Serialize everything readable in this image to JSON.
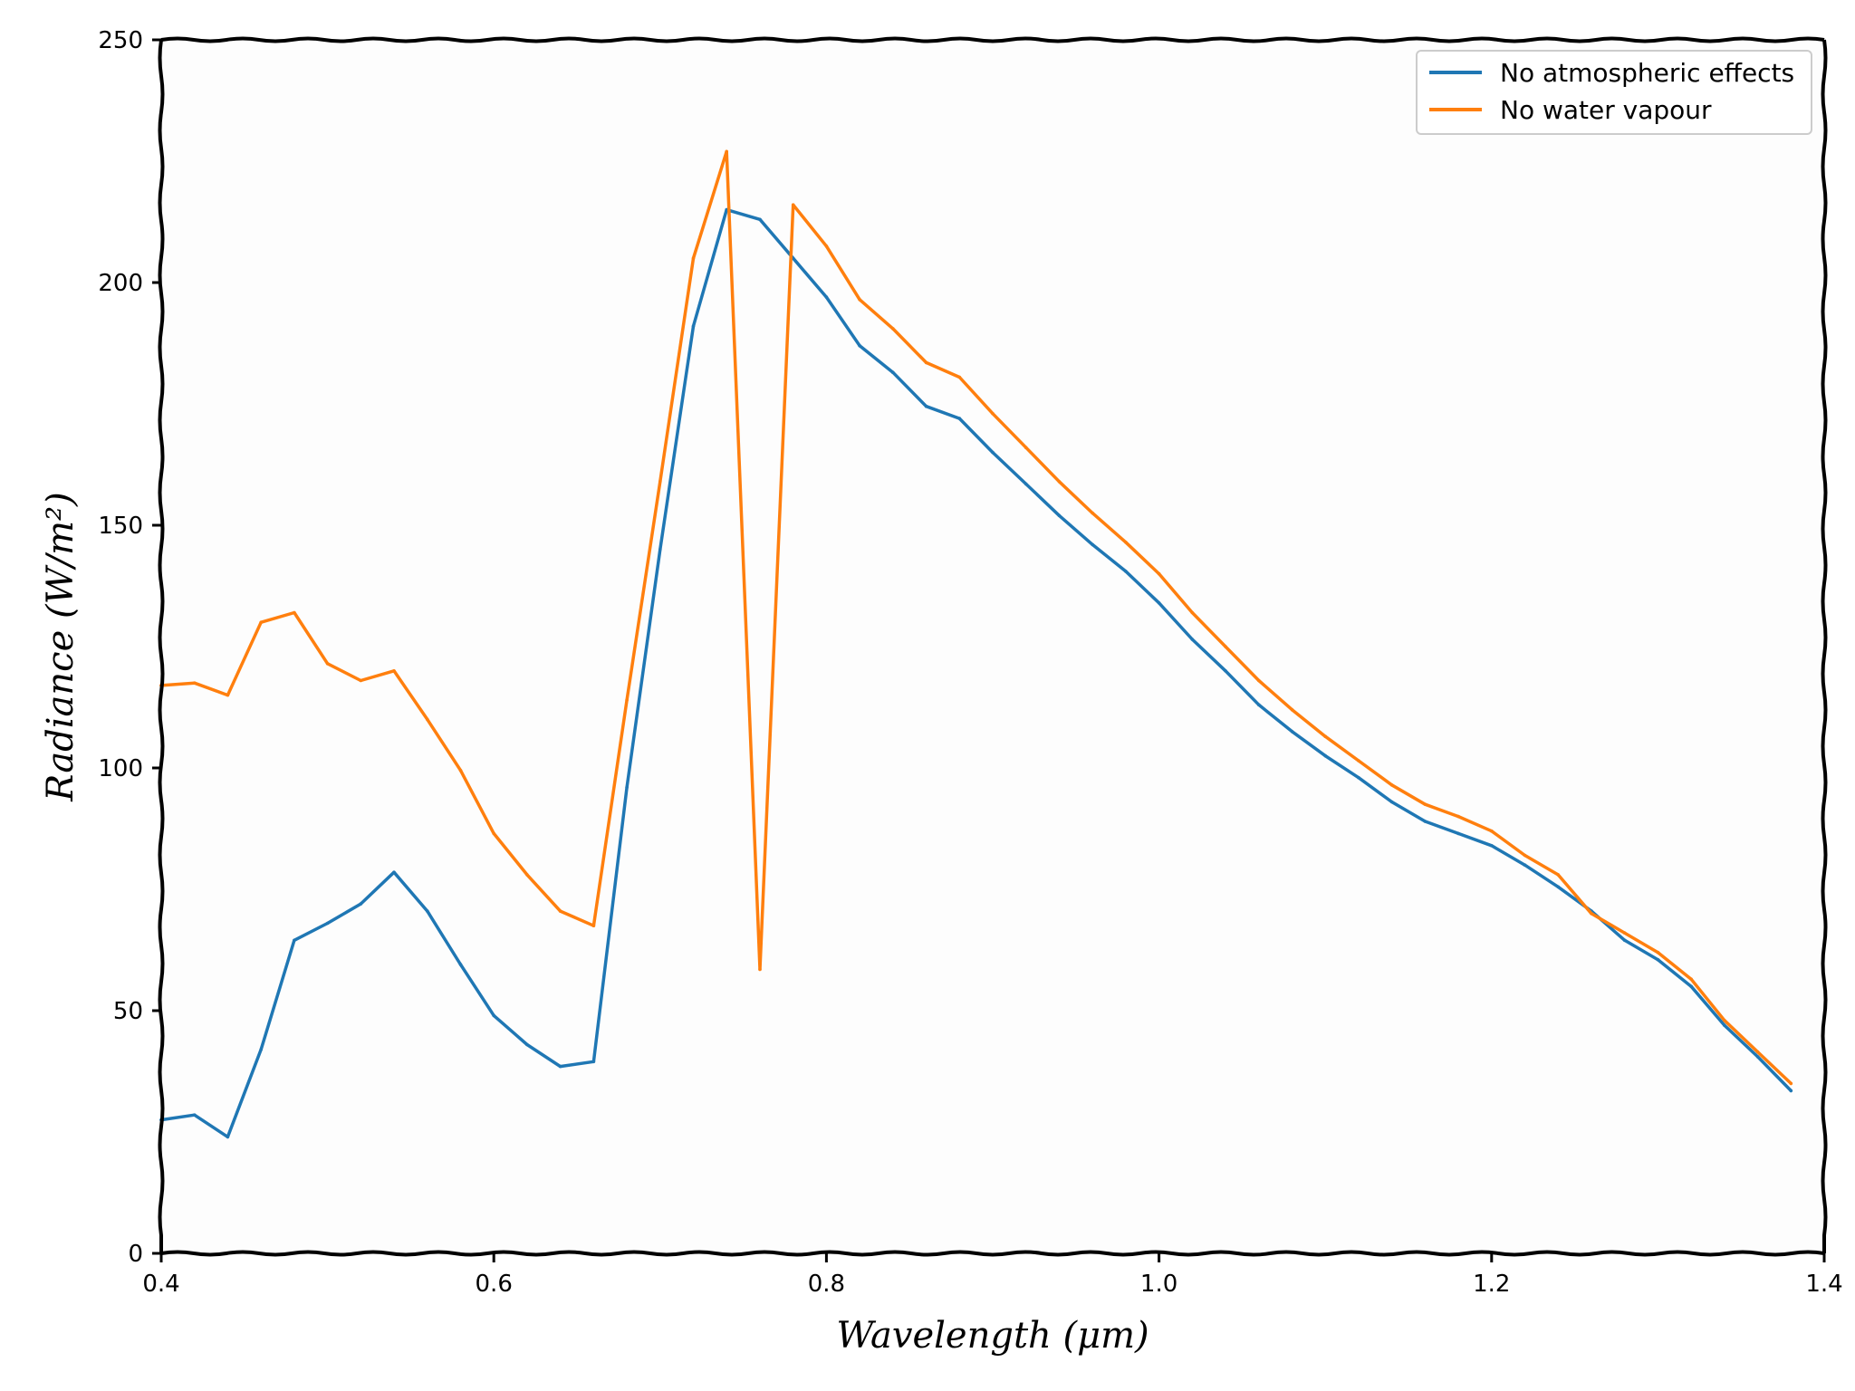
{
  "chart_data": {
    "type": "line",
    "xlabel": "Wavelength (μm)",
    "ylabel": "Radiance (W/m²)",
    "xlim": [
      0.4,
      1.4
    ],
    "ylim": [
      0,
      250
    ],
    "xticks": [
      0.4,
      0.6,
      0.8,
      1.0,
      1.2,
      1.4
    ],
    "xtick_labels": [
      "0.4",
      "0.6",
      "0.8",
      "1.0",
      "1.2",
      "1.4"
    ],
    "yticks": [
      0,
      50,
      100,
      150,
      200,
      250
    ],
    "ytick_labels": [
      "0",
      "50",
      "100",
      "150",
      "200",
      "250"
    ],
    "grid": false,
    "legend_position": "top-right",
    "x": [
      0.4,
      0.42,
      0.44,
      0.46,
      0.48,
      0.5,
      0.52,
      0.54,
      0.56,
      0.58,
      0.6,
      0.62,
      0.64,
      0.66,
      0.68,
      0.7,
      0.72,
      0.74,
      0.76,
      0.78,
      0.8,
      0.82,
      0.84,
      0.86,
      0.88,
      0.9,
      0.92,
      0.94,
      0.96,
      0.98,
      1.0,
      1.02,
      1.04,
      1.06,
      1.08,
      1.1,
      1.12,
      1.14,
      1.16,
      1.18,
      1.2,
      1.22,
      1.24,
      1.26,
      1.28,
      1.3,
      1.32,
      1.34,
      1.36,
      1.38
    ],
    "series": [
      {
        "name": "No atmospheric effects",
        "color": "#1f77b4",
        "values": [
          27.5,
          28.5,
          24,
          42,
          64.5,
          68,
          72,
          78.5,
          70.5,
          59.5,
          49,
          43,
          38.5,
          39.5,
          96,
          145,
          191,
          215,
          213,
          205,
          197,
          187,
          181.5,
          174.5,
          172,
          165,
          158.5,
          152,
          146,
          140.5,
          134,
          126.5,
          120,
          113,
          107.5,
          102.5,
          98,
          93,
          89,
          86.5,
          84,
          80,
          75.5,
          70.5,
          64.5,
          60.5,
          55,
          47,
          40.5,
          33.5
        ]
      },
      {
        "name": "No water vapour",
        "color": "#ff7f0e",
        "values": [
          117,
          117.5,
          115,
          130,
          132,
          121.5,
          118,
          120,
          110,
          99.5,
          86.5,
          78,
          70.5,
          67.5,
          114,
          159,
          205,
          227,
          58.5,
          216,
          207.5,
          196.5,
          190.5,
          183.5,
          180.5,
          173,
          166,
          159,
          152.5,
          146.5,
          140,
          132,
          125,
          118,
          112,
          106.5,
          101.5,
          96.5,
          92.5,
          90,
          87,
          82,
          78,
          70,
          66,
          62,
          56.5,
          48,
          41.5,
          35
        ]
      }
    ]
  }
}
